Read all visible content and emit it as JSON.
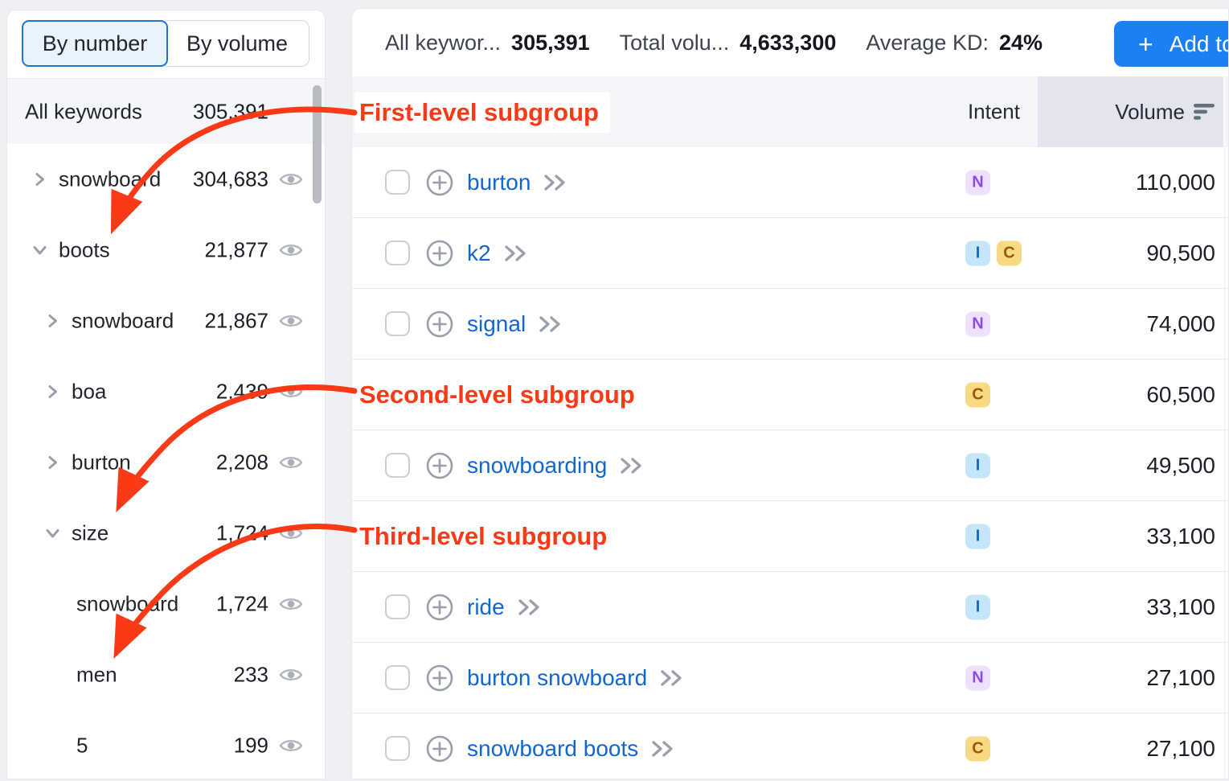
{
  "sidebar": {
    "toggle": {
      "by_number": "By number",
      "by_volume": "By volume"
    },
    "all_keywords": {
      "label": "All keywords",
      "count": "305,391"
    },
    "groups": [
      {
        "label": "snowboard",
        "count": "304,683",
        "level": 1,
        "chevron": "right"
      },
      {
        "label": "boots",
        "count": "21,877",
        "level": 1,
        "chevron": "down"
      },
      {
        "label": "snowboard",
        "count": "21,867",
        "level": 2,
        "chevron": "right"
      },
      {
        "label": "boa",
        "count": "2,439",
        "level": 2,
        "chevron": "right"
      },
      {
        "label": "burton",
        "count": "2,208",
        "level": 2,
        "chevron": "right"
      },
      {
        "label": "size",
        "count": "1,724",
        "level": 2,
        "chevron": "down"
      },
      {
        "label": "snowboard",
        "count": "1,724",
        "level": 3,
        "chevron": "none"
      },
      {
        "label": "men",
        "count": "233",
        "level": 3,
        "chevron": "none"
      },
      {
        "label": "5",
        "count": "199",
        "level": 3,
        "chevron": "none"
      }
    ]
  },
  "topbar": {
    "stats": [
      {
        "label": "All keywor...",
        "value": "305,391"
      },
      {
        "label": "Total volu...",
        "value": "4,633,300"
      },
      {
        "label": "Average KD:",
        "value": "24%"
      }
    ],
    "add_button_label": "Add to"
  },
  "table": {
    "headers": {
      "intent": "Intent",
      "volume": "Volume"
    },
    "rows": [
      {
        "keyword": "burton",
        "intents": [
          "N"
        ],
        "volume": "110,000"
      },
      {
        "keyword": "k2",
        "intents": [
          "I",
          "C"
        ],
        "volume": "90,500"
      },
      {
        "keyword": "signal",
        "intents": [
          "N"
        ],
        "volume": "74,000"
      },
      {
        "keyword": "",
        "intents": [
          "C"
        ],
        "volume": "60,500",
        "covered_by": "second"
      },
      {
        "keyword": "snowboarding",
        "intents": [
          "I"
        ],
        "volume": "49,500"
      },
      {
        "keyword": "",
        "intents": [
          "I"
        ],
        "volume": "33,100",
        "covered_by": "third"
      },
      {
        "keyword": "ride",
        "intents": [
          "I"
        ],
        "volume": "33,100"
      },
      {
        "keyword": "burton snowboard",
        "intents": [
          "N"
        ],
        "volume": "27,100"
      },
      {
        "keyword": "snowboard boots",
        "intents": [
          "C"
        ],
        "volume": "27,100"
      }
    ]
  },
  "annotations": {
    "first": "First-level subgroup",
    "second": "Second-level subgroup",
    "third": "Third-level subgroup"
  },
  "colors": {
    "annotation_red": "#fa3a17",
    "link_blue": "#1266cf",
    "accent_button_blue": "#1b80f3",
    "toggle_active_border": "#2173d8",
    "header_bg": "#f4f5f9",
    "volume_column_bg": "#e3e4ed",
    "intent_N": {
      "text": "#8b4ce4",
      "bg": "#eee0fe"
    },
    "intent_I": {
      "text": "#1b66c0",
      "bg": "#c5e6fa"
    },
    "intent_C": {
      "text": "#9c5a05",
      "bg": "#f6d982"
    }
  },
  "icons": {
    "add_keyword": "plus-circle-icon",
    "open_group": "double-chevron-right-icon",
    "visibility": "eye-icon",
    "sort": "sort-descending-icon",
    "collapse": "chevron-down-icon",
    "expand": "chevron-right-icon",
    "add_button": "plus-icon"
  }
}
